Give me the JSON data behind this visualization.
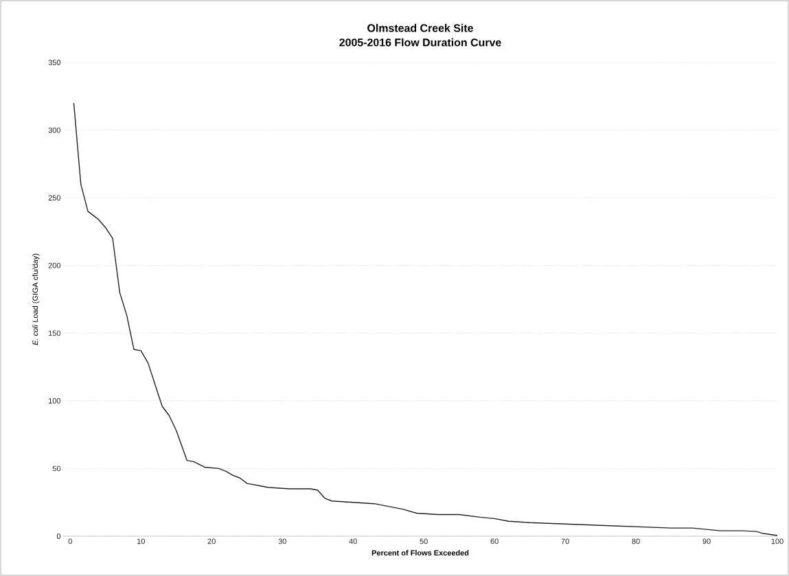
{
  "chart_data": {
    "type": "line",
    "title": "Olmstead Creek Site\n2005-2016 Flow Duration Curve",
    "xlabel": "Percent of Flows Exceeded",
    "ylabel": "*E. coli* Load (GIGA cfu/day)",
    "xlim": [
      -1,
      100
    ],
    "ylim": [
      0,
      350
    ],
    "xticks": [
      0,
      10,
      20,
      30,
      40,
      50,
      60,
      70,
      80,
      90,
      100
    ],
    "yticks": [
      0,
      50,
      100,
      150,
      200,
      250,
      300,
      350
    ],
    "grid": "y",
    "series": [
      {
        "color": "#222222",
        "x": [
          0.5,
          1.5,
          2.5,
          4,
          5,
          6,
          7,
          8,
          9,
          10,
          11,
          12,
          13,
          14,
          15,
          16.5,
          17.5,
          19,
          21,
          22,
          23,
          24,
          25,
          27,
          28,
          31,
          34,
          35,
          36,
          37,
          40,
          43,
          45,
          46,
          47,
          49,
          52,
          55,
          58,
          60,
          62,
          65,
          70,
          75,
          80,
          85,
          88,
          90,
          92,
          95,
          97,
          98,
          100
        ],
        "values": [
          320,
          260,
          240,
          234,
          228,
          220,
          180,
          163,
          138,
          137,
          128,
          112,
          96,
          89,
          78,
          56,
          55,
          51,
          50,
          48,
          45,
          43,
          39,
          37,
          36,
          35,
          35,
          34,
          28,
          26,
          25,
          24,
          22,
          21,
          20,
          17,
          16,
          16,
          14,
          13,
          11,
          10,
          9,
          8,
          7,
          6,
          6,
          5,
          4,
          4,
          3.5,
          2,
          0.5
        ]
      }
    ]
  }
}
